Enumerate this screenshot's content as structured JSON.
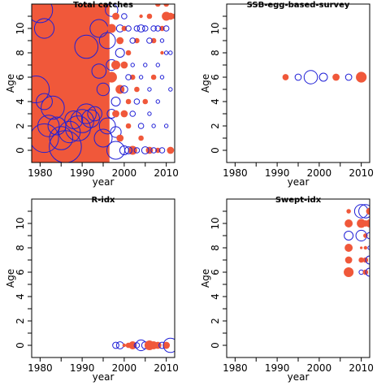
{
  "chart_data": [
    {
      "type": "scatter",
      "title": "Total catches",
      "xlabel": "year",
      "ylabel": "Age",
      "xlim": [
        1978,
        2012
      ],
      "ylim": [
        -1,
        12
      ],
      "xticks": [
        1980,
        1990,
        2000,
        2010
      ],
      "yticks": [
        0,
        2,
        4,
        6,
        8,
        10
      ],
      "colors": {
        "positive": "#f0583a",
        "negative": "#1f1fd6"
      },
      "filled_region": {
        "x_from": 1978,
        "x_to": 1996.5,
        "y_from": -1,
        "y_to": 12,
        "color": "#f0583a"
      },
      "points": [
        [
          1979,
          5,
          1.5,
          "neg"
        ],
        [
          1980,
          11.5,
          1.4,
          "neg"
        ],
        [
          1981,
          10,
          1.1,
          "neg"
        ],
        [
          1981,
          4,
          0.9,
          "neg"
        ],
        [
          1981,
          1,
          1.6,
          "neg"
        ],
        [
          1982,
          2,
          1.2,
          "neg"
        ],
        [
          1983,
          3.5,
          1.3,
          "neg"
        ],
        [
          1984,
          2,
          1.0,
          "neg"
        ],
        [
          1985,
          1,
          1.3,
          "neg"
        ],
        [
          1986,
          0.3,
          1.8,
          "neg"
        ],
        [
          1987,
          1.5,
          1.2,
          "neg"
        ],
        [
          1988,
          2.5,
          1.0,
          "neg"
        ],
        [
          1989,
          1.8,
          1.4,
          "neg"
        ],
        [
          1990,
          2.4,
          1.3,
          "neg"
        ],
        [
          1991,
          8.5,
          1.3,
          "neg"
        ],
        [
          1991,
          3,
          1.1,
          "neg"
        ],
        [
          1992,
          2.6,
          1.0,
          "neg"
        ],
        [
          1993,
          3,
          0.8,
          "neg"
        ],
        [
          1994,
          10,
          1.0,
          "neg"
        ],
        [
          1994,
          6.5,
          0.8,
          "neg"
        ],
        [
          1995,
          5,
          0.7,
          "neg"
        ],
        [
          1995,
          1,
          1.0,
          "neg"
        ],
        [
          1996,
          9,
          0.9,
          "neg"
        ],
        [
          1996,
          2,
          0.9,
          "neg"
        ],
        [
          1997,
          11.5,
          0.7,
          "neg"
        ],
        [
          1997,
          7,
          0.6,
          "neg"
        ],
        [
          1998,
          0,
          1.0,
          "neg"
        ],
        [
          1998,
          4,
          0.5,
          "neg"
        ],
        [
          1999,
          8,
          0.5,
          "neg"
        ],
        [
          1999,
          10,
          0.4,
          "neg"
        ],
        [
          1998,
          1.5,
          0.6,
          "neg"
        ],
        [
          1997,
          3,
          0.5,
          "neg"
        ],
        [
          1997,
          10,
          0.5,
          "pos"
        ],
        [
          1997,
          6,
          0.6,
          "pos"
        ],
        [
          1998,
          11,
          0.4,
          "pos"
        ],
        [
          1998,
          7,
          0.5,
          "pos"
        ],
        [
          1998,
          3,
          0.4,
          "pos"
        ],
        [
          1999,
          9,
          0.4,
          "pos"
        ],
        [
          1999,
          5,
          0.5,
          "pos"
        ],
        [
          1999,
          1,
          0.4,
          "pos"
        ],
        [
          2000,
          10,
          0.3,
          "pos"
        ],
        [
          2000,
          7,
          0.4,
          "pos"
        ],
        [
          2000,
          3,
          0.4,
          "pos"
        ],
        [
          2001,
          8,
          0.3,
          "pos"
        ],
        [
          2001,
          2,
          0.3,
          "pos"
        ],
        [
          2001,
          4,
          0.3,
          "pos"
        ],
        [
          2002,
          6,
          0.3,
          "pos"
        ],
        [
          2002,
          0,
          0.5,
          "pos"
        ],
        [
          2003,
          9,
          0.3,
          "pos"
        ],
        [
          2003,
          5,
          0.3,
          "pos"
        ],
        [
          2004,
          11,
          0.2,
          "pos"
        ],
        [
          2004,
          1,
          0.3,
          "pos"
        ],
        [
          2005,
          4,
          0.3,
          "pos"
        ],
        [
          2006,
          0,
          0.4,
          "pos"
        ],
        [
          2006,
          11,
          0.3,
          "pos"
        ],
        [
          2007,
          9,
          0.3,
          "pos"
        ],
        [
          2007,
          6,
          0.3,
          "pos"
        ],
        [
          2008,
          12,
          0.3,
          "pos"
        ],
        [
          2008,
          0,
          0.3,
          "pos"
        ],
        [
          2009,
          10,
          0.3,
          "pos"
        ],
        [
          2009,
          8,
          0.2,
          "pos"
        ],
        [
          2010,
          11,
          0.5,
          "pos"
        ],
        [
          2010,
          12,
          0.3,
          "pos"
        ],
        [
          2011,
          11,
          0.4,
          "pos"
        ],
        [
          2011,
          0,
          0.4,
          "pos"
        ],
        [
          2012,
          11,
          0.3,
          "pos"
        ],
        [
          2000,
          11,
          0.3,
          "neg"
        ],
        [
          2000,
          5,
          0.4,
          "neg"
        ],
        [
          2000,
          0,
          0.5,
          "neg"
        ],
        [
          2001,
          10,
          0.3,
          "neg"
        ],
        [
          2001,
          6,
          0.3,
          "neg"
        ],
        [
          2001,
          0,
          0.4,
          "neg"
        ],
        [
          2002,
          9,
          0.3,
          "neg"
        ],
        [
          2002,
          7,
          0.2,
          "neg"
        ],
        [
          2002,
          3,
          0.3,
          "neg"
        ],
        [
          2003,
          10,
          0.3,
          "neg"
        ],
        [
          2003,
          4,
          0.3,
          "neg"
        ],
        [
          2003,
          0,
          0.3,
          "neg"
        ],
        [
          2004,
          10,
          0.4,
          "neg"
        ],
        [
          2004,
          6,
          0.2,
          "neg"
        ],
        [
          2004,
          2,
          0.3,
          "neg"
        ],
        [
          2005,
          10,
          0.3,
          "neg"
        ],
        [
          2005,
          7,
          0.2,
          "neg"
        ],
        [
          2005,
          0,
          0.4,
          "neg"
        ],
        [
          2006,
          9,
          0.3,
          "neg"
        ],
        [
          2006,
          5,
          0.2,
          "neg"
        ],
        [
          2006,
          3,
          0.2,
          "neg"
        ],
        [
          2007,
          10,
          0.3,
          "neg"
        ],
        [
          2007,
          2,
          0.2,
          "neg"
        ],
        [
          2007,
          0,
          0.3,
          "neg"
        ],
        [
          2008,
          10,
          0.3,
          "neg"
        ],
        [
          2008,
          7,
          0.2,
          "neg"
        ],
        [
          2008,
          4,
          0.2,
          "neg"
        ],
        [
          2009,
          9,
          0.2,
          "neg"
        ],
        [
          2009,
          6,
          0.2,
          "neg"
        ],
        [
          2009,
          0,
          0.3,
          "neg"
        ],
        [
          2010,
          10,
          0.3,
          "neg"
        ],
        [
          2010,
          8,
          0.2,
          "neg"
        ],
        [
          2010,
          2,
          0.2,
          "neg"
        ],
        [
          2011,
          8,
          0.2,
          "neg"
        ],
        [
          2011,
          5,
          0.2,
          "neg"
        ]
      ]
    },
    {
      "type": "scatter",
      "title": "SSB-egg-based-survey",
      "xlabel": "year",
      "ylabel": "Age",
      "xlim": [
        1978,
        2012
      ],
      "ylim": [
        -1,
        12
      ],
      "xticks": [
        1980,
        1990,
        2000,
        2010
      ],
      "yticks": [
        0,
        2,
        4,
        6,
        8,
        10
      ],
      "points": [
        [
          1992,
          6,
          0.35,
          "pos"
        ],
        [
          1995,
          6,
          0.35,
          "neg"
        ],
        [
          1998,
          6,
          0.75,
          "neg"
        ],
        [
          2001,
          6,
          0.45,
          "neg"
        ],
        [
          2004,
          6,
          0.4,
          "pos"
        ],
        [
          2007,
          6,
          0.35,
          "neg"
        ],
        [
          2010,
          6,
          0.6,
          "pos"
        ]
      ]
    },
    {
      "type": "scatter",
      "title": "R-idx",
      "xlabel": "year",
      "ylabel": "Age",
      "xlim": [
        1978,
        2012
      ],
      "ylim": [
        -1,
        12
      ],
      "xticks": [
        1980,
        1990,
        2000,
        2010
      ],
      "yticks": [
        0,
        2,
        4,
        6,
        8,
        10
      ],
      "points": [
        [
          1998,
          0,
          0.35,
          "neg"
        ],
        [
          1999,
          0,
          0.4,
          "neg"
        ],
        [
          2000,
          0,
          0.2,
          "pos"
        ],
        [
          2001,
          0,
          0.3,
          "pos"
        ],
        [
          2002,
          0,
          0.45,
          "pos"
        ],
        [
          2003,
          0,
          0.3,
          "neg"
        ],
        [
          2004,
          0,
          0.6,
          "neg"
        ],
        [
          2005,
          0,
          0.4,
          "neg"
        ],
        [
          2006,
          0,
          0.55,
          "pos"
        ],
        [
          2007,
          0,
          0.45,
          "pos"
        ],
        [
          2008,
          0,
          0.4,
          "pos"
        ],
        [
          2009,
          0,
          0.35,
          "neg"
        ],
        [
          2010,
          0,
          0.4,
          "pos"
        ],
        [
          2011,
          0,
          0.8,
          "neg"
        ]
      ]
    },
    {
      "type": "scatter",
      "title": "Swept-idx",
      "xlabel": "year",
      "ylabel": "Age",
      "xlim": [
        1978,
        2012
      ],
      "ylim": [
        -1,
        12
      ],
      "xticks": [
        1980,
        1990,
        2000,
        2010
      ],
      "yticks": [
        0,
        2,
        4,
        6,
        8,
        10
      ],
      "points": [
        [
          2007,
          11,
          0.25,
          "pos"
        ],
        [
          2007,
          10,
          0.45,
          "pos"
        ],
        [
          2007,
          9,
          0.5,
          "neg"
        ],
        [
          2007,
          8,
          0.45,
          "pos"
        ],
        [
          2007,
          7,
          0.4,
          "pos"
        ],
        [
          2007,
          6,
          0.55,
          "pos"
        ],
        [
          2010,
          11,
          0.75,
          "neg"
        ],
        [
          2010,
          10,
          0.5,
          "pos"
        ],
        [
          2010,
          9,
          0.6,
          "neg"
        ],
        [
          2010,
          8,
          0.15,
          "pos"
        ],
        [
          2010,
          7,
          0.3,
          "pos"
        ],
        [
          2010,
          6,
          0.25,
          "neg"
        ],
        [
          2011,
          11,
          0.75,
          "neg"
        ],
        [
          2011,
          10,
          0.35,
          "pos"
        ],
        [
          2011,
          9,
          0.25,
          "pos"
        ],
        [
          2011,
          8,
          0.2,
          "pos"
        ],
        [
          2011,
          7,
          0.3,
          "pos"
        ],
        [
          2011,
          6,
          0.3,
          "pos"
        ],
        [
          2012,
          11,
          0.4,
          "pos"
        ],
        [
          2012,
          10,
          0.45,
          "pos"
        ],
        [
          2012,
          9,
          0.35,
          "neg"
        ],
        [
          2012,
          8,
          0.2,
          "neg"
        ],
        [
          2012,
          7,
          0.45,
          "neg"
        ],
        [
          2012,
          6,
          0.45,
          "neg"
        ]
      ]
    }
  ]
}
